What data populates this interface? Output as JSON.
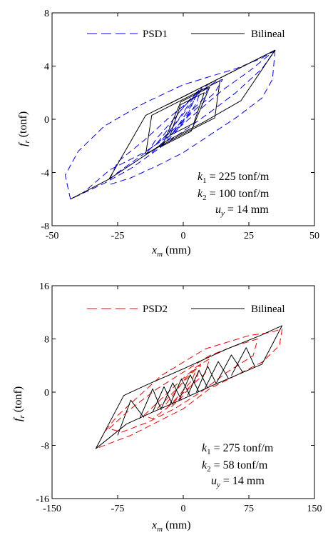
{
  "chart_data": [
    {
      "type": "line",
      "x_range": [
        -50,
        50
      ],
      "y_range": [
        -8,
        8
      ],
      "xticks": [
        "-50",
        "-25",
        "0",
        "25",
        "50"
      ],
      "yticks": [
        "8",
        "4",
        "0",
        "-4",
        "-8"
      ],
      "xlabel": "x_m (mm)",
      "ylabel": "f_r (tonf)",
      "legend_placement": "top",
      "grid": false,
      "series": [
        {
          "name": "PSD1",
          "style": "dashed",
          "color": "#0000ff",
          "loops": [
            [
              [
                -43,
                -6.0
              ],
              [
                -38,
                -5.5
              ],
              [
                -28,
                -3.8
              ],
              [
                -15,
                -2.5
              ],
              [
                -5,
                -1.2
              ],
              [
                5,
                0.5
              ],
              [
                15,
                2.2
              ],
              [
                25,
                3.6
              ],
              [
                35,
                5.2
              ],
              [
                30,
                3.8
              ],
              [
                20,
                2.0
              ],
              [
                10,
                0.5
              ],
              [
                0,
                -0.9
              ],
              [
                -10,
                -2.3
              ],
              [
                -20,
                -3.7
              ],
              [
                -30,
                -4.8
              ],
              [
                -43,
                -6.0
              ]
            ],
            [
              [
                -43,
                -6.0
              ],
              [
                -45,
                -4.2
              ],
              [
                -40,
                -2.4
              ],
              [
                -30,
                -0.5
              ],
              [
                -15,
                1.2
              ],
              [
                0,
                2.6
              ],
              [
                10,
                3.2
              ],
              [
                20,
                3.8
              ],
              [
                30,
                4.6
              ],
              [
                35,
                5.2
              ]
            ],
            [
              [
                35,
                5.2
              ],
              [
                34,
                3.0
              ],
              [
                30,
                1.6
              ],
              [
                20,
                0.1
              ],
              [
                10,
                -1.2
              ],
              [
                0,
                -2.5
              ],
              [
                -10,
                -3.5
              ],
              [
                -20,
                -4.4
              ],
              [
                -28,
                -4.9
              ]
            ],
            [
              [
                -28,
                -4.5
              ],
              [
                -25,
                -3.2
              ],
              [
                -15,
                -1.6
              ],
              [
                -5,
                0.2
              ],
              [
                5,
                1.8
              ],
              [
                12,
                2.8
              ],
              [
                15,
                3.0
              ],
              [
                12,
                2.0
              ],
              [
                5,
                0.8
              ],
              [
                -5,
                -1.0
              ],
              [
                -15,
                -2.6
              ],
              [
                -25,
                -4.0
              ],
              [
                -28,
                -4.5
              ]
            ],
            [
              [
                -14,
                -2.6
              ],
              [
                -10,
                -1.4
              ],
              [
                -5,
                -0.3
              ],
              [
                0,
                0.9
              ],
              [
                5,
                1.9
              ],
              [
                10,
                2.7
              ],
              [
                8,
                1.6
              ],
              [
                3,
                0.6
              ],
              [
                -2,
                -0.6
              ],
              [
                -7,
                -1.6
              ],
              [
                -12,
                -2.5
              ]
            ],
            [
              [
                -10,
                -1.8
              ],
              [
                -6,
                -0.8
              ],
              [
                -2,
                0.4
              ],
              [
                3,
                1.6
              ],
              [
                7,
                2.4
              ],
              [
                5,
                1.2
              ],
              [
                1,
                0.0
              ],
              [
                -4,
                -1.2
              ],
              [
                -9,
                -2.1
              ]
            ],
            [
              [
                -8,
                -1.5
              ],
              [
                -4,
                -0.6
              ],
              [
                0,
                0.4
              ],
              [
                4,
                1.4
              ],
              [
                2,
                0.5
              ],
              [
                -2,
                -0.6
              ],
              [
                -6,
                -1.4
              ]
            ],
            [
              [
                -6,
                -1.2
              ],
              [
                -3,
                -0.3
              ],
              [
                1,
                0.8
              ],
              [
                5,
                1.9
              ],
              [
                6,
                2.2
              ],
              [
                3,
                1.0
              ],
              [
                -1,
                -0.2
              ],
              [
                -5,
                -1.3
              ]
            ]
          ]
        },
        {
          "name": "Bilineal",
          "style": "solid",
          "color": "#000000",
          "loops": [
            [
              [
                -43,
                -6.0
              ],
              [
                -28.3,
                -4.5
              ],
              [
                -14.3,
                0.3
              ],
              [
                1.0,
                1.8
              ],
              [
                15.0,
                3.2
              ],
              [
                35.0,
                5.2
              ],
              [
                22.0,
                1.4
              ],
              [
                7.9,
                -0.2
              ],
              [
                -6.1,
                -1.6
              ],
              [
                -28.3,
                -4.5
              ]
            ],
            [
              [
                35.0,
                5.2
              ],
              [
                21.0,
                3.8
              ],
              [
                8.0,
                2.5
              ],
              [
                -6.0,
                1.1
              ]
            ],
            [
              [
                -14.3,
                -2.6
              ],
              [
                -2.0,
                -1.3
              ],
              [
                12.0,
                0.1
              ],
              [
                14.0,
                2.9
              ],
              [
                2.0,
                1.7
              ],
              [
                -12.0,
                0.3
              ],
              [
                -14.3,
                -2.6
              ]
            ],
            [
              [
                -8,
                -2.0
              ],
              [
                3,
                -0.9
              ],
              [
                10,
                2.4
              ],
              [
                -1,
                1.3
              ],
              [
                -8,
                -2.0
              ]
            ],
            [
              [
                -5,
                -1.2
              ],
              [
                4,
                -0.3
              ],
              [
                8,
                2.0
              ],
              [
                -1,
                1.1
              ],
              [
                -5,
                -1.2
              ]
            ]
          ]
        }
      ],
      "annotations": [
        "k_1 = 225 tonf/m",
        "k_2 = 100 tonf/m",
        "u_y = 14 mm"
      ]
    },
    {
      "type": "line",
      "x_range": [
        -150,
        150
      ],
      "y_range": [
        -16,
        16
      ],
      "xticks": [
        "-150",
        "-75",
        "0",
        "75",
        "150"
      ],
      "yticks": [
        "16",
        "8",
        "0",
        "-8",
        "-16"
      ],
      "xlabel": "x_m (mm)",
      "ylabel": "f_r (tonf)",
      "legend_placement": "top",
      "grid": false,
      "series": [
        {
          "name": "PSD2",
          "style": "dashed",
          "color": "#ff0000",
          "loops": [
            [
              [
                -100,
                -8.5
              ],
              [
                -90,
                -6.0
              ],
              [
                -75,
                -3.5
              ],
              [
                -50,
                -0.5
              ],
              [
                -25,
                2.5
              ],
              [
                0,
                4.5
              ],
              [
                25,
                6.5
              ],
              [
                50,
                7.5
              ],
              [
                75,
                8.5
              ],
              [
                100,
                9.0
              ],
              [
                113,
                9.5
              ],
              [
                110,
                7.0
              ],
              [
                90,
                4.5
              ],
              [
                60,
                2.5
              ],
              [
                30,
                0.5
              ],
              [
                0,
                -2.5
              ],
              [
                -30,
                -4.5
              ],
              [
                -60,
                -6.5
              ],
              [
                -80,
                -7.5
              ],
              [
                -100,
                -8.5
              ]
            ],
            [
              [
                -85,
                -5.5
              ],
              [
                -60,
                -2.5
              ],
              [
                -30,
                0.5
              ],
              [
                0,
                3.0
              ],
              [
                30,
                5.5
              ],
              [
                60,
                7.0
              ],
              [
                85,
                8.0
              ],
              [
                80,
                5.5
              ],
              [
                50,
                3.0
              ],
              [
                20,
                0.0
              ],
              [
                -10,
                -2.5
              ],
              [
                -40,
                -4.5
              ],
              [
                -70,
                -6.0
              ],
              [
                -85,
                -5.5
              ]
            ],
            [
              [
                -45,
                -3.5
              ],
              [
                -25,
                -1.0
              ],
              [
                -5,
                1.5
              ],
              [
                15,
                3.8
              ],
              [
                30,
                5.0
              ],
              [
                25,
                2.8
              ],
              [
                5,
                0.5
              ],
              [
                -15,
                -2.0
              ],
              [
                -35,
                -4.0
              ],
              [
                -45,
                -3.5
              ]
            ],
            [
              [
                -30,
                -2.5
              ],
              [
                -15,
                -0.5
              ],
              [
                0,
                1.5
              ],
              [
                15,
                3.5
              ],
              [
                10,
                1.8
              ],
              [
                -5,
                -0.5
              ],
              [
                -20,
                -2.6
              ]
            ],
            [
              [
                -20,
                -1.8
              ],
              [
                -8,
                0.2
              ],
              [
                5,
                2.5
              ],
              [
                20,
                4.2
              ],
              [
                15,
                2.0
              ],
              [
                0,
                -0.5
              ],
              [
                -15,
                -2.4
              ]
            ]
          ]
        },
        {
          "name": "Bilineal",
          "style": "solid",
          "color": "#000000",
          "loops": [
            [
              [
                -100,
                -8.5
              ],
              [
                -68,
                -0.5
              ],
              [
                -40,
                1.2
              ],
              [
                0,
                3.5
              ],
              [
                50,
                6.5
              ],
              [
                88,
                8.5
              ],
              [
                113,
                10.0
              ],
              [
                90,
                4.2
              ],
              [
                60,
                2.5
              ],
              [
                30,
                0.8
              ],
              [
                0,
                -1.0
              ],
              [
                -35,
                -3.0
              ],
              [
                -65,
                -4.8
              ],
              [
                -100,
                -8.5
              ]
            ],
            [
              [
                -75,
                -6.5
              ],
              [
                -60,
                -1.2
              ],
              [
                -45,
                -3.8
              ]
            ],
            [
              [
                -50,
                -4.0
              ],
              [
                -35,
                0.5
              ],
              [
                -25,
                -2.7
              ]
            ],
            [
              [
                -35,
                -3.0
              ],
              [
                -22,
                0.8
              ],
              [
                -12,
                -1.9
              ]
            ],
            [
              [
                -25,
                -2.4
              ],
              [
                -12,
                1.4
              ],
              [
                -2,
                -1.2
              ]
            ],
            [
              [
                -15,
                -1.8
              ],
              [
                -2,
                2.0
              ],
              [
                8,
                -0.6
              ]
            ],
            [
              [
                -5,
                -1.2
              ],
              [
                8,
                2.6
              ],
              [
                18,
                0.0
              ]
            ],
            [
              [
                5,
                -0.5
              ],
              [
                18,
                3.3
              ],
              [
                28,
                0.6
              ]
            ],
            [
              [
                15,
                0.0
              ],
              [
                28,
                3.9
              ],
              [
                38,
                1.2
              ]
            ],
            [
              [
                25,
                0.6
              ],
              [
                40,
                4.6
              ],
              [
                52,
                2.0
              ]
            ],
            [
              [
                38,
                1.4
              ],
              [
                55,
                5.6
              ],
              [
                68,
                3.0
              ]
            ],
            [
              [
                55,
                2.5
              ],
              [
                72,
                6.7
              ],
              [
                82,
                3.8
              ]
            ]
          ]
        }
      ],
      "annotations": [
        "k_1 = 275 tonf/m",
        "k_2 = 58 tonf/m",
        "u_y = 14 mm"
      ]
    }
  ]
}
